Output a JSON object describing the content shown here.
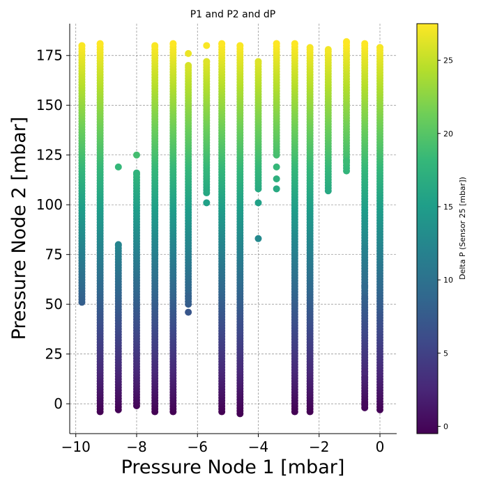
{
  "chart_data": {
    "type": "scatter",
    "title": "P1 and P2 and dP",
    "xlabel": "Pressure Node 1 [mbar]",
    "ylabel": "Pressure Node 2 [mbar]",
    "xlim": [
      -10.2,
      0.55
    ],
    "ylim": [
      -15,
      191
    ],
    "x_ticks": [
      -10,
      -8,
      -6,
      -4,
      -2,
      0
    ],
    "x_tick_labels": [
      "−10",
      "−8",
      "−6",
      "−4",
      "−2",
      "0"
    ],
    "y_ticks": [
      0,
      25,
      50,
      75,
      100,
      125,
      150,
      175
    ],
    "y_tick_labels": [
      "0",
      "25",
      "50",
      "75",
      "100",
      "125",
      "150",
      "175"
    ],
    "grid": true,
    "grid_style": "dashed",
    "colormap": "viridis",
    "colormap_stops": [
      "#440154",
      "#482878",
      "#3e4989",
      "#31688e",
      "#26828e",
      "#1f9e89",
      "#35b779",
      "#6ece58",
      "#b5de2b",
      "#fde725"
    ],
    "colorbar": {
      "label": "Delta P (Sensor 25 [mbar])",
      "range": [
        -0.5,
        27.5
      ],
      "ticks": [
        0,
        5,
        10,
        15,
        20,
        25
      ],
      "tick_labels": [
        "0",
        "5",
        "10",
        "15",
        "20",
        "25"
      ]
    },
    "columns": [
      {
        "x": -9.8,
        "y_min": 51,
        "y_max": 180,
        "outliers": []
      },
      {
        "x": -9.2,
        "y_min": -4,
        "y_max": 181,
        "outliers": []
      },
      {
        "x": -8.6,
        "y_min": -3,
        "y_max": 80,
        "outliers": [
          119
        ]
      },
      {
        "x": -8.0,
        "y_min": -1,
        "y_max": 116,
        "outliers": [
          125
        ]
      },
      {
        "x": -7.4,
        "y_min": -4,
        "y_max": 180,
        "outliers": []
      },
      {
        "x": -6.8,
        "y_min": -4,
        "y_max": 181,
        "outliers": []
      },
      {
        "x": -6.3,
        "y_min": 50,
        "y_max": 170,
        "outliers": [
          46,
          54,
          176
        ]
      },
      {
        "x": -5.7,
        "y_min": 106,
        "y_max": 172,
        "outliers": [
          101,
          180
        ]
      },
      {
        "x": -5.2,
        "y_min": -4,
        "y_max": 181,
        "outliers": []
      },
      {
        "x": -4.6,
        "y_min": -5,
        "y_max": 180,
        "outliers": []
      },
      {
        "x": -4.0,
        "y_min": 108,
        "y_max": 172,
        "outliers": [
          83,
          101
        ]
      },
      {
        "x": -3.4,
        "y_min": 125,
        "y_max": 181,
        "outliers": [
          108,
          113,
          119
        ]
      },
      {
        "x": -2.8,
        "y_min": -4,
        "y_max": 181,
        "outliers": []
      },
      {
        "x": -2.3,
        "y_min": -4,
        "y_max": 179,
        "outliers": []
      },
      {
        "x": -1.7,
        "y_min": 107,
        "y_max": 178,
        "outliers": []
      },
      {
        "x": -1.1,
        "y_min": 117,
        "y_max": 182,
        "outliers": [
          122
        ]
      },
      {
        "x": -0.5,
        "y_min": -2,
        "y_max": 181,
        "outliers": [
          0,
          13,
          16,
          53,
          59,
          78
        ]
      },
      {
        "x": 0.0,
        "y_min": -3,
        "y_max": 179,
        "outliers": []
      }
    ]
  }
}
